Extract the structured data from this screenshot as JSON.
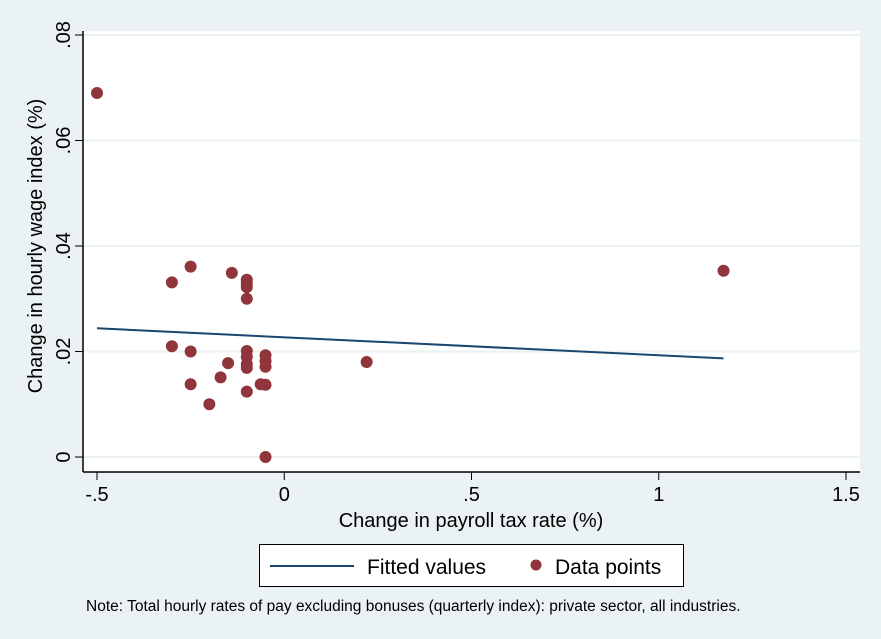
{
  "chart_data": {
    "type": "scatter",
    "title": "",
    "xlabel": "Change in payroll tax rate (%)",
    "ylabel": "Change in hourly wage index (%)",
    "xlim": [
      -0.5,
      1.5
    ],
    "ylim": [
      0,
      0.08
    ],
    "x_ticks": [
      {
        "value": -0.5,
        "label": "-.5"
      },
      {
        "value": 0,
        "label": "0"
      },
      {
        "value": 0.5,
        "label": ".5"
      },
      {
        "value": 1,
        "label": "1"
      },
      {
        "value": 1.5,
        "label": "1.5"
      }
    ],
    "y_ticks": [
      {
        "value": 0,
        "label": "0"
      },
      {
        "value": 0.02,
        "label": ".02"
      },
      {
        "value": 0.04,
        "label": ".04"
      },
      {
        "value": 0.06,
        "label": ".06"
      },
      {
        "value": 0.08,
        "label": ".08"
      }
    ],
    "grid": {
      "horizontal": true,
      "vertical": false
    },
    "series": [
      {
        "name": "Fitted values",
        "type": "line",
        "color": "#1A476F",
        "points": [
          {
            "x": -0.5,
            "y": 0.0244
          },
          {
            "x": 1.173,
            "y": 0.0187
          }
        ]
      },
      {
        "name": "Data points",
        "type": "scatter",
        "color": "#90353B",
        "points": [
          {
            "x": -0.5,
            "y": 0.069
          },
          {
            "x": 1.173,
            "y": 0.0353
          },
          {
            "x": -0.25,
            "y": 0.0361
          },
          {
            "x": -0.3,
            "y": 0.0331
          },
          {
            "x": -0.14,
            "y": 0.0349
          },
          {
            "x": -0.1,
            "y": 0.0336
          },
          {
            "x": -0.1,
            "y": 0.0329
          },
          {
            "x": -0.1,
            "y": 0.0322
          },
          {
            "x": -0.1,
            "y": 0.03
          },
          {
            "x": -0.3,
            "y": 0.021
          },
          {
            "x": -0.25,
            "y": 0.02
          },
          {
            "x": -0.1,
            "y": 0.0201
          },
          {
            "x": -0.1,
            "y": 0.019
          },
          {
            "x": -0.1,
            "y": 0.0176
          },
          {
            "x": -0.1,
            "y": 0.0169
          },
          {
            "x": -0.05,
            "y": 0.0193
          },
          {
            "x": -0.05,
            "y": 0.0182
          },
          {
            "x": -0.05,
            "y": 0.0171
          },
          {
            "x": -0.15,
            "y": 0.0178
          },
          {
            "x": -0.17,
            "y": 0.0151
          },
          {
            "x": -0.25,
            "y": 0.0138
          },
          {
            "x": -0.2,
            "y": 0.01
          },
          {
            "x": -0.1,
            "y": 0.0124
          },
          {
            "x": -0.063,
            "y": 0.0138
          },
          {
            "x": -0.05,
            "y": 0.0137
          },
          {
            "x": -0.05,
            "y": 0.0
          },
          {
            "x": 0.22,
            "y": 0.018
          }
        ]
      }
    ],
    "legend": {
      "placement": "bottom",
      "entries": [
        {
          "label": "Fitted values",
          "marker": "line",
          "color": "#1A476F"
        },
        {
          "label": "Data points",
          "marker": "circle",
          "color": "#90353B"
        }
      ]
    },
    "note": "Note: Total hourly rates of pay excluding bonuses (quarterly index): private sector, all industries."
  },
  "colors": {
    "background": "#EAF2F3",
    "plot_background": "#FFFFFF",
    "grid": "#EAF2F3",
    "axis": "#000000"
  }
}
